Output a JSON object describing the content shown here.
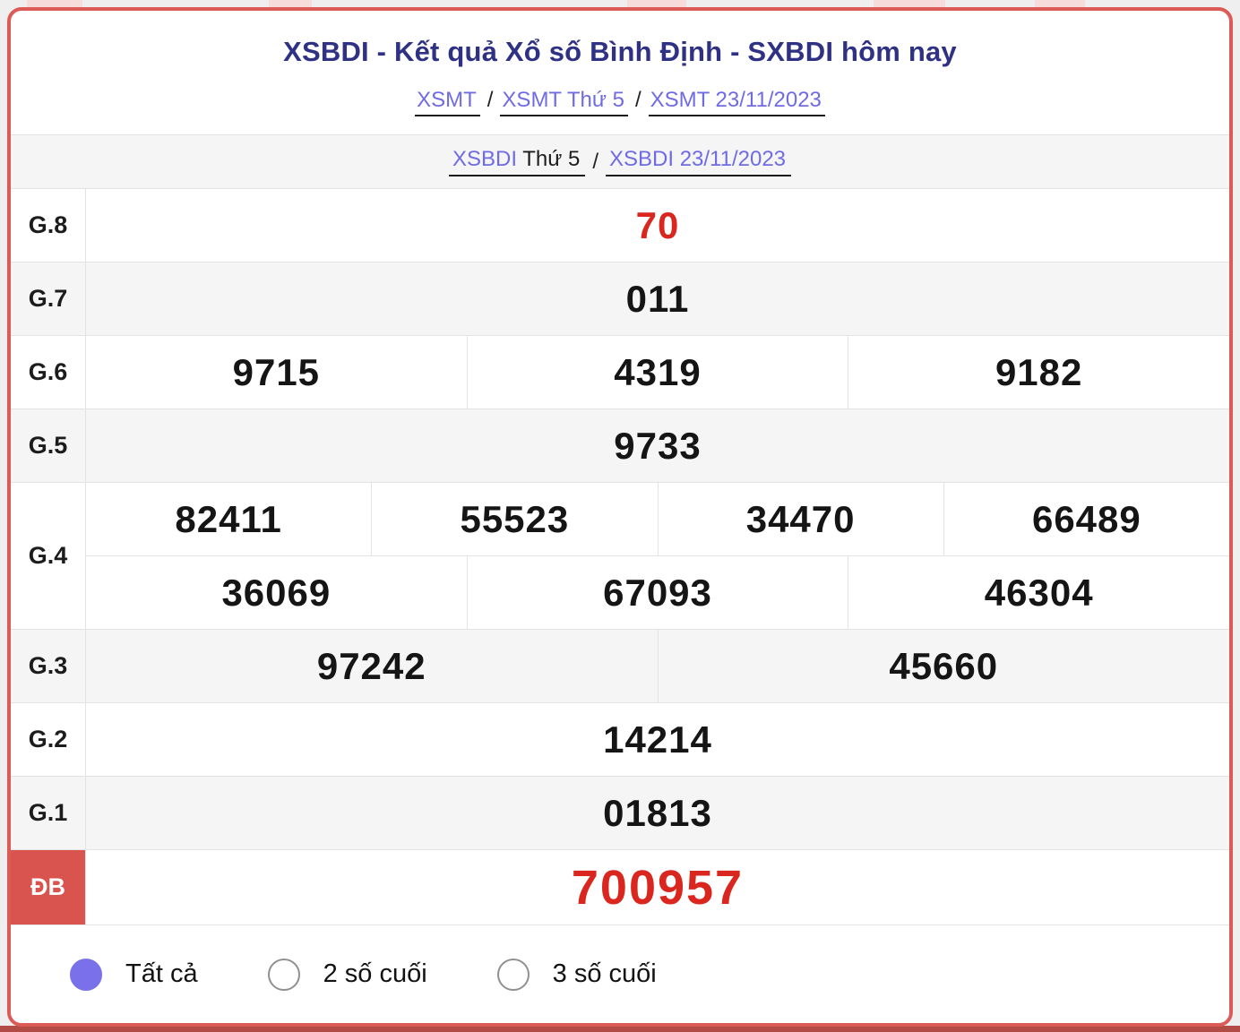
{
  "header": {
    "title": "XSBDI - Kết quả Xổ số Bình Định - SXBDI hôm nay",
    "separator": "/",
    "breadcrumb": [
      {
        "label": "XSMT"
      },
      {
        "label": "XSMT Thứ 5"
      },
      {
        "label": "XSMT 23/11/2023"
      }
    ]
  },
  "subheader": {
    "link_region": "XSBDI",
    "plain_day": "Thứ 5",
    "separator": "/",
    "link_date": "XSBDI 23/11/2023"
  },
  "table": {
    "rows": [
      {
        "label": "G.8",
        "cells": [
          "70"
        ]
      },
      {
        "label": "G.7",
        "cells": [
          "011"
        ]
      },
      {
        "label": "G.6",
        "cells": [
          "9715",
          "4319",
          "9182"
        ]
      },
      {
        "label": "G.5",
        "cells": [
          "9733"
        ]
      },
      {
        "label": "G.4",
        "lines": [
          [
            "82411",
            "55523",
            "34470",
            "66489"
          ],
          [
            "36069",
            "67093",
            "46304"
          ]
        ]
      },
      {
        "label": "G.3",
        "cells": [
          "97242",
          "45660"
        ]
      },
      {
        "label": "G.2",
        "cells": [
          "14214"
        ]
      },
      {
        "label": "G.1",
        "cells": [
          "01813"
        ]
      },
      {
        "label": "ĐB",
        "cells": [
          "700957"
        ]
      }
    ]
  },
  "filters": [
    {
      "label": "Tất cả",
      "selected": true
    },
    {
      "label": "2 số cuối",
      "selected": false
    },
    {
      "label": "3 số cuối",
      "selected": false
    }
  ],
  "colors": {
    "card_border": "#dc5b56",
    "special_label_bg": "#d9534f",
    "highlight_number": "#d9261f",
    "title_navy": "#2e3184",
    "link_purple": "#6f6be4",
    "radio_selected": "#7a70ea",
    "alt_row_bg": "#f5f5f6",
    "bottom_shadow": "#b24a45"
  }
}
